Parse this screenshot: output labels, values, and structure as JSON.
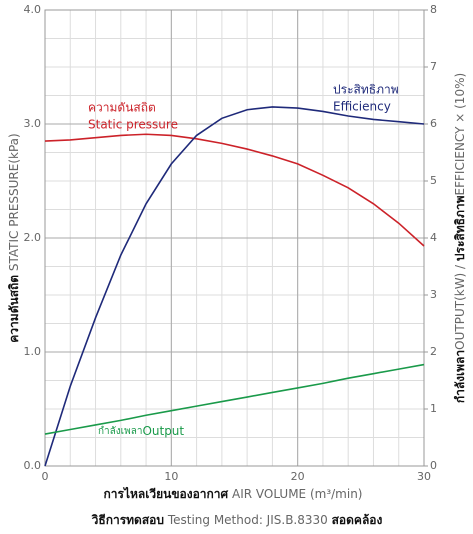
{
  "chart_data": {
    "type": "line",
    "x": [
      0,
      2,
      4,
      6,
      8,
      10,
      12,
      14,
      16,
      18,
      20,
      22,
      24,
      26,
      28,
      30
    ],
    "xlim": [
      0,
      30
    ],
    "xticks": [
      0,
      10,
      20,
      30
    ],
    "ylim": [
      0,
      4
    ],
    "yticks": [
      {
        "value": 0,
        "label": "0.0"
      },
      {
        "value": 1,
        "label": "1.0"
      },
      {
        "value": 2,
        "label": "2.0"
      },
      {
        "value": 3,
        "label": "3.0"
      },
      {
        "value": 4,
        "label": "4.0"
      }
    ],
    "y2lim": [
      0,
      8
    ],
    "y2ticks": [
      0,
      1,
      2,
      3,
      4,
      5,
      6,
      7,
      8
    ],
    "grid": true,
    "xlabel": {
      "th": "การไหลเวียนของอากาศ",
      "en": " AIR VOLUME (m³/min)"
    },
    "ylabel": {
      "th": "ความดันสถิต",
      "en": " STATIC PRESSURE(kPa)"
    },
    "y2label": {
      "th1": "กำลังเพลา",
      "en1": "OUTPUT(kW) / ",
      "th2": "ประสิทธิภาพ",
      "en2": "EFFICIENCY × (10%)"
    },
    "note": {
      "th1": "วิธีการทดสอบ",
      "en": " Testing Method: JIS.B.8330 ",
      "th2": "สอดคล้อง"
    },
    "series": [
      {
        "name": "Static pressure",
        "name_th": "ความดันสถิต",
        "color": "#cc2229",
        "axis": "y",
        "values": [
          2.85,
          2.86,
          2.88,
          2.9,
          2.91,
          2.9,
          2.87,
          2.83,
          2.78,
          2.72,
          2.65,
          2.55,
          2.44,
          2.3,
          2.13,
          1.93
        ]
      },
      {
        "name": "Efficiency",
        "name_th": "ประสิทธิภาพ",
        "color": "#1f2a7a",
        "axis": "y2",
        "values": [
          0,
          1.4,
          2.6,
          3.7,
          4.6,
          5.3,
          5.8,
          6.1,
          6.25,
          6.3,
          6.28,
          6.22,
          6.14,
          6.08,
          6.04,
          6.0
        ]
      },
      {
        "name": "Output",
        "name_th": "กำลังเพลา",
        "color": "#1a9a4a",
        "axis": "y2",
        "values": [
          0.56,
          0.64,
          0.72,
          0.8,
          0.89,
          0.97,
          1.05,
          1.13,
          1.21,
          1.29,
          1.37,
          1.45,
          1.54,
          1.62,
          1.7,
          1.78
        ]
      }
    ]
  }
}
